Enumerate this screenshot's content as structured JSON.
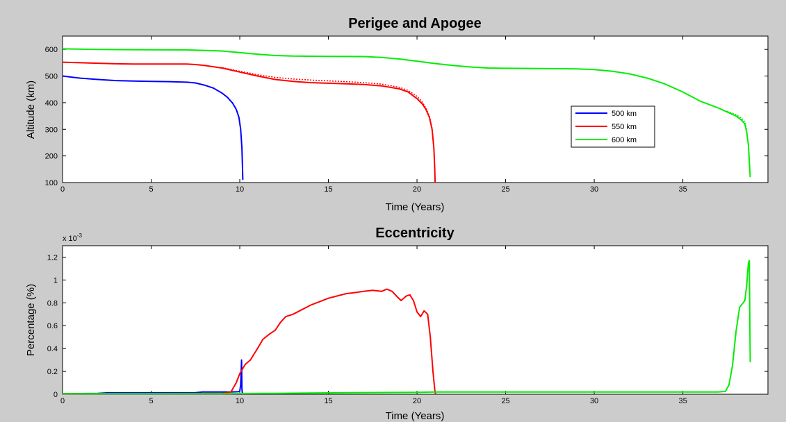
{
  "chart_data": [
    {
      "type": "line",
      "title": "Perigee and Apogee",
      "xlabel": "Time (Years)",
      "ylabel": "Altitude (km)",
      "xlim": [
        0,
        39.8
      ],
      "ylim": [
        100,
        650
      ],
      "xticks": [
        0,
        5,
        10,
        15,
        20,
        25,
        30,
        35
      ],
      "yticks": [
        100,
        200,
        300,
        400,
        500,
        600
      ],
      "legend_position": "center-right",
      "grid": false,
      "series": [
        {
          "name": "500 km",
          "color": "#0000ff",
          "style": "solid",
          "points": [
            [
              0,
              500
            ],
            [
              0.5,
              496
            ],
            [
              1,
              492
            ],
            [
              2,
              487
            ],
            [
              3,
              483
            ],
            [
              4,
              481
            ],
            [
              5,
              480
            ],
            [
              6,
              479
            ],
            [
              7,
              477
            ],
            [
              7.5,
              474
            ],
            [
              8,
              466
            ],
            [
              8.5,
              455
            ],
            [
              9,
              436
            ],
            [
              9.3,
              420
            ],
            [
              9.6,
              398
            ],
            [
              9.8,
              375
            ],
            [
              9.95,
              345
            ],
            [
              10.05,
              300
            ],
            [
              10.12,
              230
            ],
            [
              10.15,
              160
            ],
            [
              10.17,
              110
            ]
          ]
        },
        {
          "name": "550 km",
          "color": "#ff0000",
          "style": "solid",
          "points": [
            [
              0,
              552
            ],
            [
              1,
              550
            ],
            [
              2,
              548
            ],
            [
              3,
              546
            ],
            [
              4,
              545
            ],
            [
              5,
              545
            ],
            [
              6,
              545
            ],
            [
              7,
              545
            ],
            [
              7.5,
              543
            ],
            [
              8,
              540
            ],
            [
              9,
              530
            ],
            [
              10,
              515
            ],
            [
              11,
              500
            ],
            [
              12,
              487
            ],
            [
              13,
              480
            ],
            [
              14,
              475
            ],
            [
              15,
              473
            ],
            [
              16,
              471
            ],
            [
              17,
              468
            ],
            [
              18,
              463
            ],
            [
              19,
              452
            ],
            [
              19.5,
              440
            ],
            [
              20,
              415
            ],
            [
              20.3,
              395
            ],
            [
              20.5,
              375
            ],
            [
              20.7,
              345
            ],
            [
              20.85,
              300
            ],
            [
              20.95,
              230
            ],
            [
              21,
              150
            ],
            [
              21.02,
              100
            ]
          ]
        },
        {
          "name": "",
          "color": "#ff0000",
          "style": "dotted",
          "points": [
            [
              9,
              532
            ],
            [
              10,
              518
            ],
            [
              11,
              505
            ],
            [
              12,
              495
            ],
            [
              13,
              489
            ],
            [
              14,
              485
            ],
            [
              15,
              482
            ],
            [
              16,
              479
            ],
            [
              17,
              475
            ],
            [
              18,
              470
            ],
            [
              19,
              458
            ],
            [
              19.5,
              446
            ],
            [
              20,
              424
            ],
            [
              20.3,
              402
            ],
            [
              20.5,
              380
            ],
            [
              20.7,
              350
            ],
            [
              20.85,
              305
            ],
            [
              20.95,
              235
            ]
          ]
        },
        {
          "name": "600 km",
          "color": "#00ee00",
          "style": "solid",
          "points": [
            [
              0,
              602
            ],
            [
              2,
              600
            ],
            [
              4,
              599
            ],
            [
              7,
              598
            ],
            [
              9,
              594
            ],
            [
              10,
              588
            ],
            [
              11,
              582
            ],
            [
              12,
              577
            ],
            [
              13,
              575
            ],
            [
              15,
              574
            ],
            [
              17,
              573
            ],
            [
              18,
              570
            ],
            [
              19,
              564
            ],
            [
              20,
              556
            ],
            [
              21,
              547
            ],
            [
              22,
              540
            ],
            [
              23,
              534
            ],
            [
              24,
              530
            ],
            [
              25,
              529
            ],
            [
              27,
              528
            ],
            [
              29,
              527
            ],
            [
              30,
              524
            ],
            [
              31,
              518
            ],
            [
              32,
              508
            ],
            [
              33,
              492
            ],
            [
              34,
              470
            ],
            [
              35,
              440
            ],
            [
              36,
              405
            ],
            [
              37,
              380
            ],
            [
              37.5,
              365
            ],
            [
              38,
              350
            ],
            [
              38.3,
              335
            ],
            [
              38.5,
              320
            ],
            [
              38.6,
              290
            ],
            [
              38.7,
              240
            ],
            [
              38.75,
              180
            ],
            [
              38.8,
              120
            ]
          ]
        },
        {
          "name": "",
          "color": "#00ee00",
          "style": "dotted",
          "points": [
            [
              37.5,
              368
            ],
            [
              38,
              355
            ],
            [
              38.3,
              342
            ],
            [
              38.5,
              328
            ],
            [
              38.6,
              300
            ]
          ]
        }
      ]
    },
    {
      "type": "line",
      "title": "Eccentricity",
      "xlabel": "Time (Years)",
      "ylabel": "Percentage (%)",
      "y_exponent": "x 10",
      "y_exponent_power": "-3",
      "xlim": [
        0,
        39.8
      ],
      "ylim": [
        0,
        1.3
      ],
      "xticks": [
        0,
        5,
        10,
        15,
        20,
        25,
        30,
        35
      ],
      "yticks": [
        0,
        0.2,
        0.4,
        0.6,
        0.8,
        1,
        1.2
      ],
      "ytick_labels": [
        "0",
        "0.2",
        "0.4",
        "0.6",
        "0.8",
        "1",
        "1.2"
      ],
      "grid": false,
      "series": [
        {
          "name": "500 km",
          "color": "#0000ff",
          "style": "solid",
          "points": [
            [
              0,
              0.005
            ],
            [
              1,
              0.006
            ],
            [
              2,
              0.008
            ],
            [
              2.5,
              0.012
            ],
            [
              3,
              0.012
            ],
            [
              4,
              0.012
            ],
            [
              5,
              0.012
            ],
            [
              6,
              0.013
            ],
            [
              7,
              0.013
            ],
            [
              7.5,
              0.014
            ],
            [
              7.9,
              0.02
            ],
            [
              8.5,
              0.02
            ],
            [
              9,
              0.02
            ],
            [
              9.5,
              0.02
            ],
            [
              9.9,
              0.022
            ],
            [
              10,
              0.025
            ],
            [
              10.05,
              0.08
            ],
            [
              10.1,
              0.3
            ],
            [
              10.12,
              0.05
            ],
            [
              10.15,
              0.0
            ]
          ]
        },
        {
          "name": "550 km",
          "color": "#ff0000",
          "style": "solid",
          "points": [
            [
              0,
              0.005
            ],
            [
              5,
              0.006
            ],
            [
              9,
              0.007
            ],
            [
              9.5,
              0.02
            ],
            [
              9.8,
              0.1
            ],
            [
              10,
              0.18
            ],
            [
              10.3,
              0.26
            ],
            [
              10.6,
              0.3
            ],
            [
              11,
              0.4
            ],
            [
              11.3,
              0.48
            ],
            [
              11.7,
              0.53
            ],
            [
              12,
              0.56
            ],
            [
              12.3,
              0.63
            ],
            [
              12.6,
              0.68
            ],
            [
              13,
              0.7
            ],
            [
              13.5,
              0.74
            ],
            [
              14,
              0.78
            ],
            [
              14.5,
              0.81
            ],
            [
              15,
              0.84
            ],
            [
              15.5,
              0.86
            ],
            [
              16,
              0.88
            ],
            [
              16.5,
              0.89
            ],
            [
              17,
              0.9
            ],
            [
              17.5,
              0.91
            ],
            [
              18,
              0.9
            ],
            [
              18.3,
              0.92
            ],
            [
              18.6,
              0.9
            ],
            [
              18.9,
              0.85
            ],
            [
              19.1,
              0.82
            ],
            [
              19.4,
              0.86
            ],
            [
              19.6,
              0.87
            ],
            [
              19.8,
              0.82
            ],
            [
              20.0,
              0.72
            ],
            [
              20.2,
              0.68
            ],
            [
              20.4,
              0.73
            ],
            [
              20.6,
              0.7
            ],
            [
              20.75,
              0.5
            ],
            [
              20.9,
              0.2
            ],
            [
              21.0,
              0.04
            ],
            [
              21.05,
              0.0
            ]
          ]
        },
        {
          "name": "600 km",
          "color": "#00ee00",
          "style": "solid",
          "points": [
            [
              0,
              0.005
            ],
            [
              5,
              0.005
            ],
            [
              9,
              0.005
            ],
            [
              10,
              0.006
            ],
            [
              12,
              0.008
            ],
            [
              15,
              0.012
            ],
            [
              18,
              0.015
            ],
            [
              20,
              0.017
            ],
            [
              21,
              0.02
            ],
            [
              25,
              0.02
            ],
            [
              30,
              0.02
            ],
            [
              35,
              0.02
            ],
            [
              37,
              0.02
            ],
            [
              37.4,
              0.025
            ],
            [
              37.6,
              0.08
            ],
            [
              37.8,
              0.25
            ],
            [
              38,
              0.55
            ],
            [
              38.2,
              0.76
            ],
            [
              38.4,
              0.8
            ],
            [
              38.5,
              0.82
            ],
            [
              38.6,
              0.95
            ],
            [
              38.7,
              1.15
            ],
            [
              38.75,
              1.17
            ],
            [
              38.8,
              0.28
            ]
          ]
        }
      ]
    }
  ]
}
